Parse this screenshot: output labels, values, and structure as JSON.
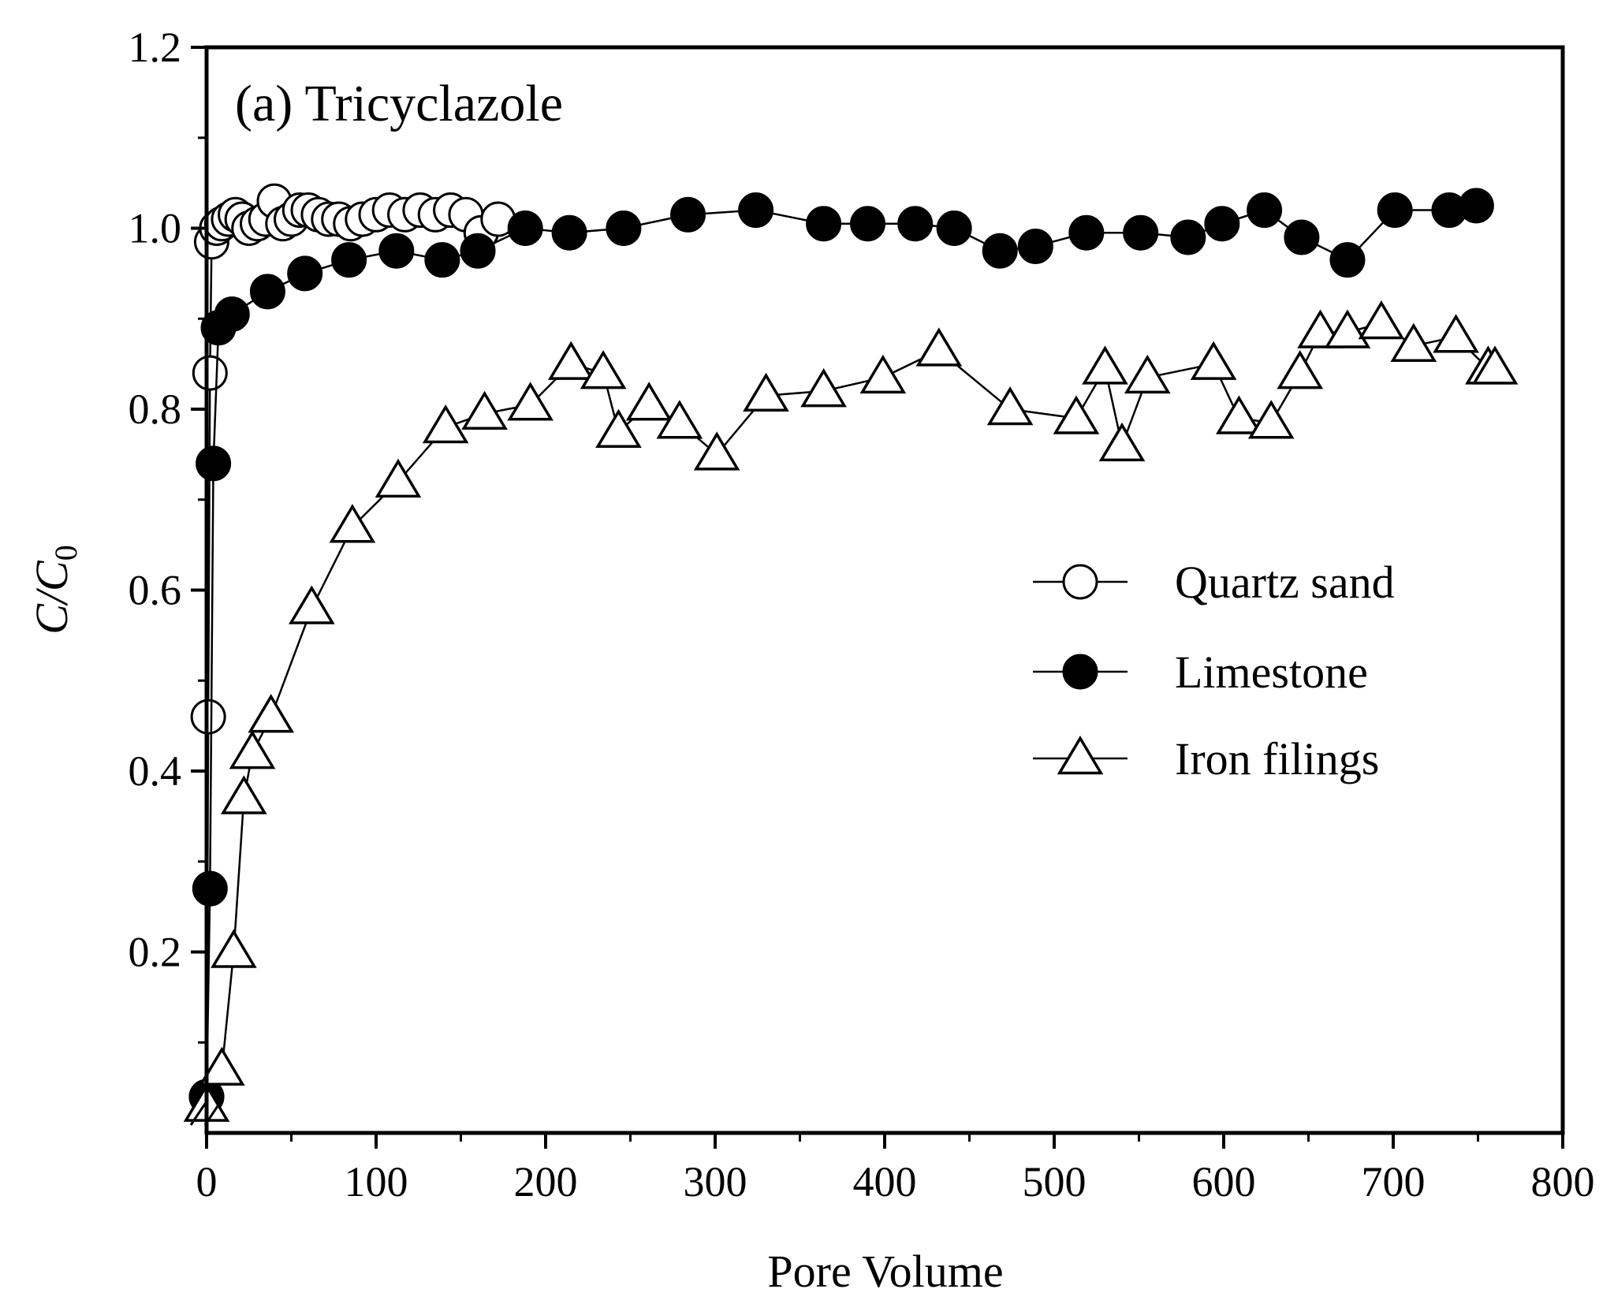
{
  "chart_data": {
    "type": "scatter",
    "title": "(a) Tricyclazole",
    "xlabel": "Pore Volume",
    "ylabel": "C/C0",
    "ylabel_main": "C/C",
    "ylabel_sub": "0",
    "xlim": [
      0,
      800
    ],
    "ylim": [
      0,
      1.2
    ],
    "x_ticks": [
      0,
      100,
      200,
      300,
      400,
      500,
      600,
      700,
      800
    ],
    "x_tick_labels": [
      "0",
      "100",
      "200",
      "300",
      "400",
      "500",
      "600",
      "700",
      "800"
    ],
    "y_ticks": [
      0.2,
      0.4,
      0.6,
      0.8,
      1.0,
      1.2
    ],
    "y_tick_labels": [
      "0.2",
      "0.4",
      "0.6",
      "0.8",
      "1.0",
      "1.2"
    ],
    "grid": false,
    "legend_position": "center-right",
    "series": [
      {
        "name": "Quartz sand",
        "marker": "open-circle",
        "x": [
          0,
          1,
          2,
          3,
          6,
          9,
          13,
          17,
          21,
          25,
          30,
          35,
          40,
          45,
          50,
          55,
          60,
          66,
          72,
          78,
          85,
          92,
          100,
          108,
          117,
          126,
          135,
          144,
          153,
          162,
          172
        ],
        "y": [
          0.04,
          0.46,
          0.84,
          0.985,
          1.0,
          1.005,
          1.01,
          1.015,
          1.01,
          1.0,
          1.005,
          1.01,
          1.03,
          1.005,
          1.01,
          1.02,
          1.02,
          1.015,
          1.01,
          1.01,
          1.005,
          1.01,
          1.015,
          1.02,
          1.015,
          1.02,
          1.015,
          1.02,
          1.015,
          0.995,
          1.01
        ]
      },
      {
        "name": "Limestone",
        "marker": "filled-circle",
        "x": [
          0,
          2,
          4,
          7,
          15,
          36,
          58,
          84,
          112,
          139,
          160,
          188,
          214,
          246,
          284,
          324,
          364,
          390,
          418,
          441,
          468,
          489,
          519,
          551,
          579,
          599,
          624,
          646,
          673,
          701,
          733,
          749
        ],
        "y": [
          0.04,
          0.27,
          0.74,
          0.89,
          0.905,
          0.93,
          0.95,
          0.965,
          0.975,
          0.965,
          0.975,
          1.0,
          0.995,
          1.0,
          1.015,
          1.02,
          1.005,
          1.005,
          1.005,
          1.0,
          0.975,
          0.98,
          0.995,
          0.995,
          0.99,
          1.005,
          1.02,
          0.99,
          0.965,
          1.02,
          1.02,
          1.025
        ]
      },
      {
        "name": "Iron filings",
        "marker": "open-triangle",
        "x": [
          0,
          9,
          16,
          22,
          27,
          38,
          62,
          86,
          113,
          141,
          164,
          191,
          215,
          234,
          243,
          261,
          279,
          301,
          330,
          364,
          399,
          432,
          474,
          513,
          530,
          540,
          555,
          594,
          609,
          628,
          645,
          657,
          673,
          693,
          712,
          737,
          756,
          760
        ],
        "y": [
          0.03,
          0.07,
          0.2,
          0.37,
          0.42,
          0.46,
          0.58,
          0.67,
          0.72,
          0.78,
          0.795,
          0.805,
          0.85,
          0.84,
          0.775,
          0.805,
          0.785,
          0.75,
          0.815,
          0.82,
          0.835,
          0.865,
          0.8,
          0.79,
          0.845,
          0.76,
          0.835,
          0.85,
          0.79,
          0.785,
          0.84,
          0.885,
          0.885,
          0.895,
          0.87,
          0.88,
          0.845,
          0.845
        ]
      }
    ]
  }
}
